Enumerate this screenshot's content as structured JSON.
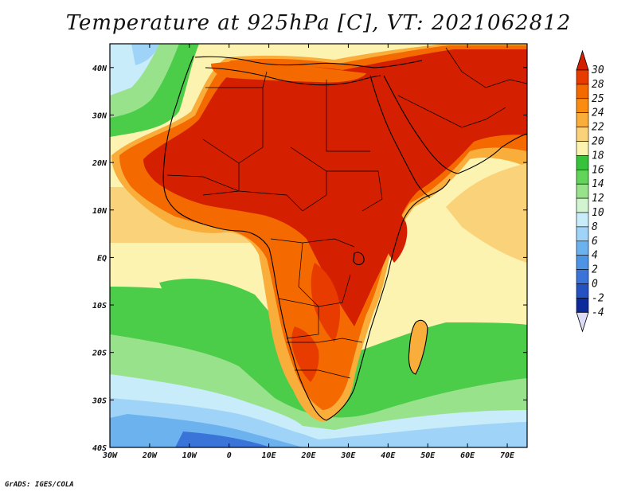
{
  "title": "Temperature at 925hPa [C], VT: 2021062812",
  "credit": "GrADS: IGES/COLA",
  "map": {
    "lon_range": [
      -30,
      75
    ],
    "lat_range": [
      -40,
      45
    ],
    "lon_ticks": [
      {
        "lon": -30,
        "label": "30W"
      },
      {
        "lon": -20,
        "label": "20W"
      },
      {
        "lon": -10,
        "label": "10W"
      },
      {
        "lon": 0,
        "label": "0"
      },
      {
        "lon": 10,
        "label": "10E"
      },
      {
        "lon": 20,
        "label": "20E"
      },
      {
        "lon": 30,
        "label": "30E"
      },
      {
        "lon": 40,
        "label": "40E"
      },
      {
        "lon": 50,
        "label": "50E"
      },
      {
        "lon": 60,
        "label": "60E"
      },
      {
        "lon": 70,
        "label": "70E"
      }
    ],
    "lat_ticks": [
      {
        "lat": 40,
        "label": "40N"
      },
      {
        "lat": 30,
        "label": "30N"
      },
      {
        "lat": 20,
        "label": "20N"
      },
      {
        "lat": 10,
        "label": "10N"
      },
      {
        "lat": 0,
        "label": "EQ"
      },
      {
        "lat": -10,
        "label": "10S"
      },
      {
        "lat": -20,
        "label": "20S"
      },
      {
        "lat": -30,
        "label": "30S"
      },
      {
        "lat": -40,
        "label": "40S"
      }
    ]
  },
  "colorbar": {
    "labels": [
      "30",
      "28",
      "25",
      "24",
      "22",
      "20",
      "18",
      "16",
      "14",
      "12",
      "10",
      "8",
      "6",
      "4",
      "2",
      "0",
      "-2",
      "-4"
    ],
    "colors": [
      "#d42000",
      "#e83b00",
      "#f46a00",
      "#fa8c10",
      "#f9ae3c",
      "#fad27a",
      "#fcf3b0",
      "#36c23a",
      "#62d45a",
      "#98e28c",
      "#d2f4d0",
      "#c8ecfa",
      "#9fd4f8",
      "#6cb2ee",
      "#4e94e4",
      "#3a74d8",
      "#2452c0",
      "#0d2a9a",
      "#0a1670"
    ],
    "top_color": "#d42000",
    "bottom_color": "#dcdcf8"
  }
}
